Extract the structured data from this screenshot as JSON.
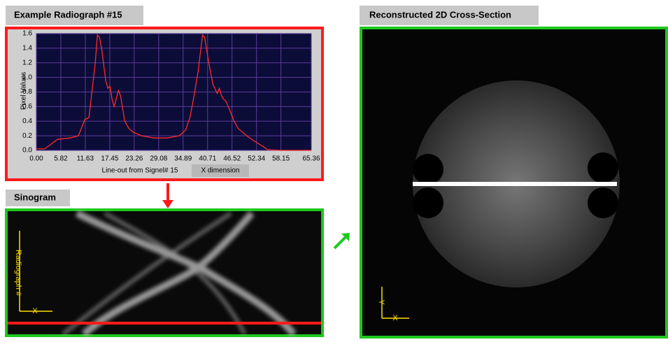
{
  "panels": {
    "radiograph_title": "Example Radiograph #15",
    "sinogram_title": "Sinogram",
    "reconstruction_title": "Reconstructed 2D Cross-Section",
    "sinogram_y_axis": "Radiograph #",
    "sinogram_x_axis": "X",
    "reconstruction_y_axis": "Y",
    "reconstruction_x_axis": "X"
  },
  "chart_data": {
    "type": "line",
    "ylabel": "Pixel Values",
    "xlabel": "Line-out from Signel# 15",
    "x_button": "X dimension",
    "x": [
      0,
      1,
      2,
      5,
      8,
      10,
      11.5,
      12.5,
      13,
      14,
      14.5,
      15,
      15.5,
      16.5,
      17,
      17.5,
      18,
      18.5,
      19.5,
      20,
      21,
      22,
      23,
      25,
      28,
      31,
      34,
      35.5,
      36.5,
      37.5,
      38.5,
      39.5,
      40,
      41,
      42,
      43,
      43.5,
      44,
      44.5,
      45,
      46,
      47,
      48,
      50,
      52,
      54,
      55,
      58,
      65.36
    ],
    "series": [
      {
        "color": "#ff2a2a",
        "values": [
          0.02,
          0.02,
          0.02,
          0.15,
          0.17,
          0.2,
          0.42,
          0.45,
          0.7,
          1.2,
          1.58,
          1.55,
          1.4,
          0.95,
          0.85,
          0.88,
          0.7,
          0.6,
          0.82,
          0.75,
          0.4,
          0.3,
          0.25,
          0.2,
          0.17,
          0.17,
          0.2,
          0.28,
          0.45,
          0.75,
          1.1,
          1.58,
          1.55,
          1.2,
          0.9,
          0.78,
          0.85,
          0.75,
          0.7,
          0.68,
          0.55,
          0.4,
          0.3,
          0.2,
          0.12,
          0.05,
          0.01,
          0,
          0
        ]
      }
    ],
    "xlim": [
      0,
      65.36
    ],
    "ylim": [
      0,
      1.6
    ],
    "xticks": [
      {
        "value": 0,
        "label": "0.00"
      },
      5.82,
      11.63,
      17.45,
      23.26,
      29.08,
      34.89,
      40.71,
      46.52,
      52.34,
      58.15,
      65.36
    ],
    "yticks": [
      {
        "value": 0,
        "label": "0.0"
      },
      0.2,
      0.4,
      0.6,
      0.8,
      {
        "value": 1,
        "label": "1.0"
      },
      1.2,
      1.4,
      1.6
    ],
    "grid": true
  }
}
